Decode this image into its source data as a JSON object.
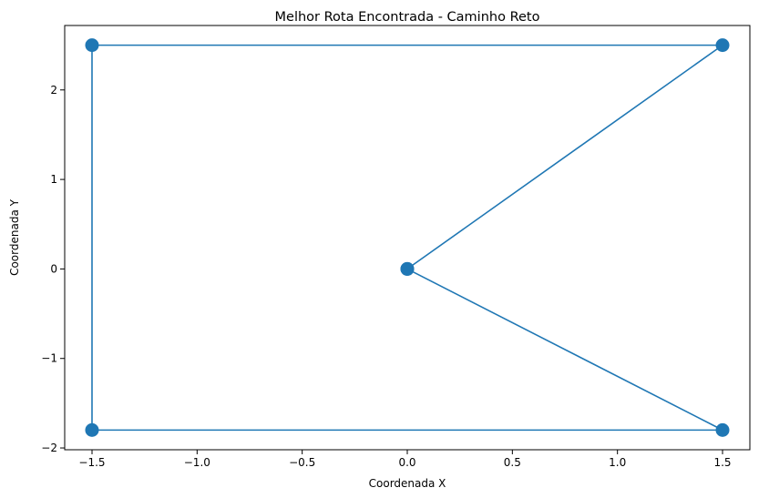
{
  "chart_data": {
    "type": "line",
    "title": "Melhor Rota Encontrada - Caminho Reto",
    "xlabel": "Coordenada X",
    "ylabel": "Coordenada Y",
    "xlim": [
      -1.63,
      1.63
    ],
    "ylim": [
      -2.02,
      2.72
    ],
    "xticks": [
      -1.5,
      -1.0,
      -0.5,
      0.0,
      0.5,
      1.0,
      1.5
    ],
    "xtick_labels": [
      "−1.5",
      "−1.0",
      "−0.5",
      "0.0",
      "0.5",
      "1.0",
      "1.5"
    ],
    "yticks": [
      -2,
      -1,
      0,
      1,
      2
    ],
    "ytick_labels": [
      "−2",
      "−1",
      "0",
      "1",
      "2"
    ],
    "grid": false,
    "legend": false,
    "color": "#1f77b4",
    "marker": "circle",
    "series": [
      {
        "x": [
          0,
          1.5,
          -1.5,
          -1.5,
          1.5,
          0
        ],
        "y": [
          0,
          2.5,
          2.5,
          -1.8,
          -1.8,
          0
        ]
      }
    ]
  }
}
